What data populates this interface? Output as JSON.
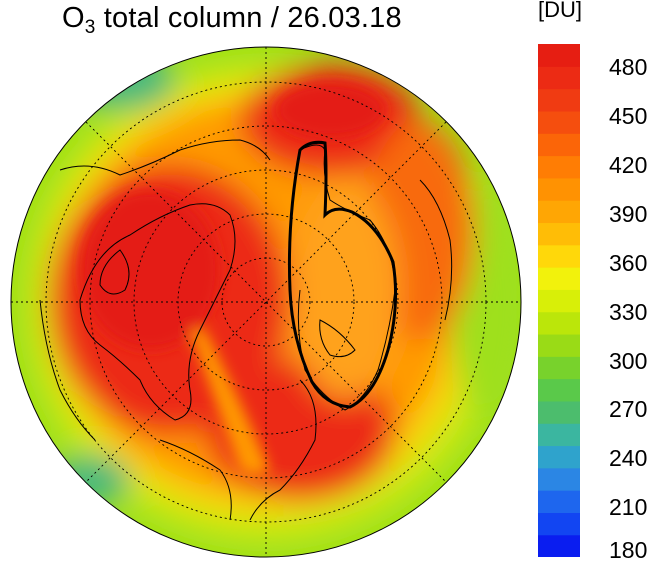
{
  "title": {
    "species_main": "O",
    "species_sub": "3",
    "rest": " total column / 26.03.18"
  },
  "colorbar": {
    "unit": "[DU]",
    "min": 180,
    "max": 495,
    "tick_labels": [
      "480",
      "450",
      "420",
      "390",
      "360",
      "330",
      "300",
      "270",
      "240",
      "210",
      "180"
    ],
    "colors": [
      "#0a1df0",
      "#1245f2",
      "#1e66ee",
      "#2b86e4",
      "#2fa3cc",
      "#3bb6a0",
      "#4cbd6d",
      "#5ac94a",
      "#78d22c",
      "#9adb16",
      "#bbe60a",
      "#d8ef08",
      "#f2f20c",
      "#ffd80a",
      "#ffbd06",
      "#ffa604",
      "#ff9202",
      "#ff7d04",
      "#fb6508",
      "#f54e0e",
      "#f03b12",
      "#ec2b14",
      "#e61e12"
    ]
  },
  "map": {
    "colors": {
      "rim": "#9fe01a",
      "low": "#c9ea12",
      "yellow": "#f7d50f",
      "orange": "#ff9a06",
      "dark_orange": "#f86a0a",
      "red": "#ec2914",
      "deep_red": "#e41e12",
      "vortex": "#ffa21a",
      "teal": "#49b97d"
    }
  }
}
